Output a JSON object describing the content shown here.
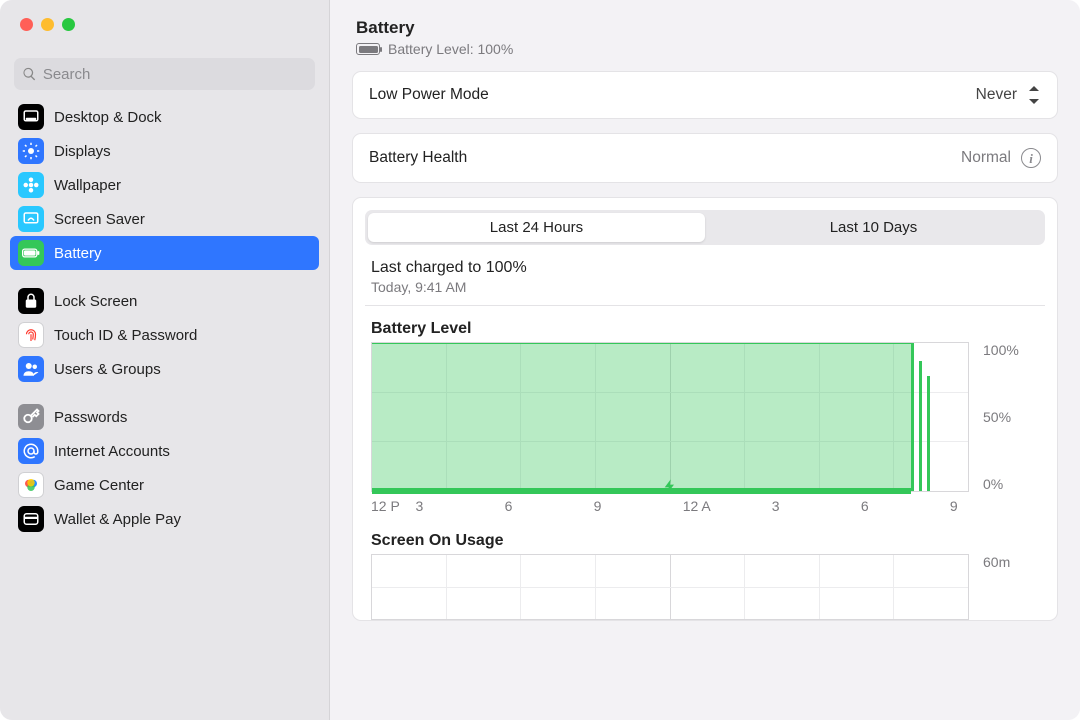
{
  "search": {
    "placeholder": "Search"
  },
  "sidebar": {
    "groups": [
      [
        {
          "label": "Desktop & Dock",
          "name": "sidebar-item-desktop-dock",
          "icon": "dock",
          "bg": "#000000",
          "fg": "#ffffff"
        },
        {
          "label": "Displays",
          "name": "sidebar-item-displays",
          "icon": "sun",
          "bg": "#2f76ff",
          "fg": "#ffffff"
        },
        {
          "label": "Wallpaper",
          "name": "sidebar-item-wallpaper",
          "icon": "flower",
          "bg": "#29c8ff",
          "fg": "#ffffff"
        },
        {
          "label": "Screen Saver",
          "name": "sidebar-item-screen-saver",
          "icon": "screensaver",
          "bg": "#29c8ff",
          "fg": "#ffffff"
        },
        {
          "label": "Battery",
          "name": "sidebar-item-battery",
          "icon": "battery",
          "bg": "#34c759",
          "fg": "#ffffff",
          "selected": true
        }
      ],
      [
        {
          "label": "Lock Screen",
          "name": "sidebar-item-lock-screen",
          "icon": "lock",
          "bg": "#000000",
          "fg": "#ffffff"
        },
        {
          "label": "Touch ID & Password",
          "name": "sidebar-item-touch-id",
          "icon": "fingerprint",
          "bg": "#ffffff",
          "fg": "#ff3b30",
          "border": true
        },
        {
          "label": "Users & Groups",
          "name": "sidebar-item-users-groups",
          "icon": "users",
          "bg": "#2f76ff",
          "fg": "#ffffff"
        }
      ],
      [
        {
          "label": "Passwords",
          "name": "sidebar-item-passwords",
          "icon": "key",
          "bg": "#8e8e93",
          "fg": "#ffffff"
        },
        {
          "label": "Internet Accounts",
          "name": "sidebar-item-internet-accounts",
          "icon": "at",
          "bg": "#2f76ff",
          "fg": "#ffffff"
        },
        {
          "label": "Game Center",
          "name": "sidebar-item-game-center",
          "icon": "gamecenter",
          "bg": "#ffffff",
          "fg": "#000000",
          "border": true
        },
        {
          "label": "Wallet & Apple Pay",
          "name": "sidebar-item-wallet",
          "icon": "wallet",
          "bg": "#000000",
          "fg": "#ffffff"
        }
      ]
    ]
  },
  "header": {
    "title": "Battery",
    "level_label": "Battery Level: 100%"
  },
  "low_power": {
    "label": "Low Power Mode",
    "value": "Never"
  },
  "health": {
    "label": "Battery Health",
    "value": "Normal"
  },
  "tabs": {
    "a": "Last 24 Hours",
    "b": "Last 10 Days",
    "active": "a"
  },
  "last_charged": {
    "line1": "Last charged to 100%",
    "line2": "Today, 9:41 AM"
  },
  "battery_level_chart": {
    "title": "Battery Level",
    "x_ticks": [
      "12 P",
      "3",
      "6",
      "9",
      "12 A",
      "3",
      "6",
      "9"
    ],
    "y_ticks": [
      "100%",
      "50%",
      "0%"
    ],
    "fill_percent": 90.4,
    "fill_color_rgba": "rgba(52,199,89,.35)",
    "line_color": "#34c759",
    "stripes": {
      "start_percent": 90.4,
      "heights_percent": [
        100,
        88,
        78
      ]
    },
    "bolt_at_percent": 50,
    "grid_cols": 8,
    "grid_rows": 3,
    "background": "#ffffff",
    "border": "#d8d7da"
  },
  "screen_on_chart": {
    "title": "Screen On Usage",
    "y_ticks": [
      "60m"
    ],
    "grid_cols": 8,
    "grid_rows": 2
  },
  "colors": {
    "accent": "#2f76ff",
    "green": "#34c759"
  }
}
